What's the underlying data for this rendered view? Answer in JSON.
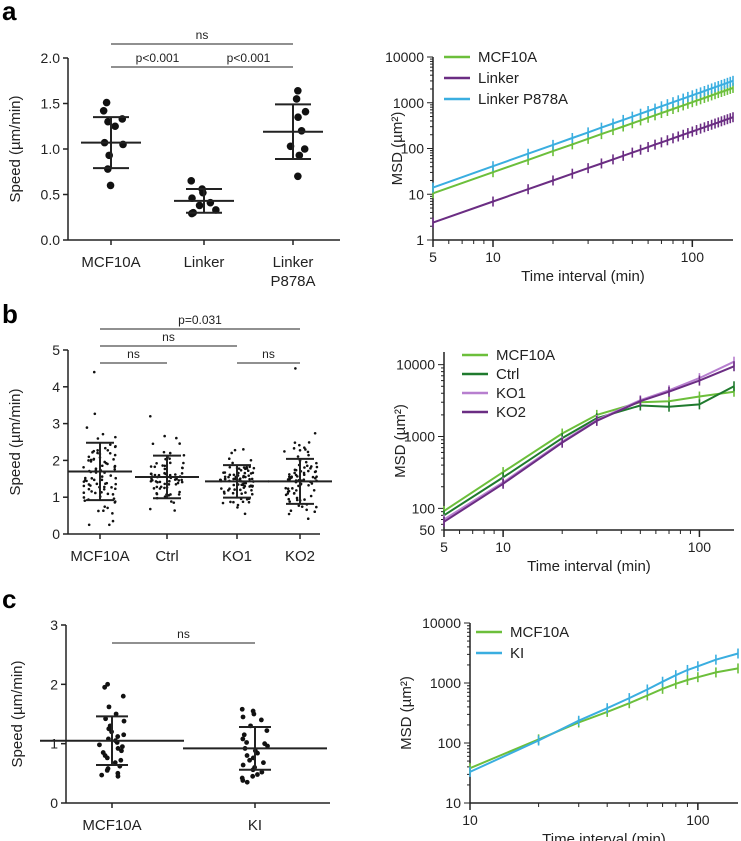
{
  "panels": [
    {
      "label": "a",
      "label_color": "#222222"
    },
    {
      "label": "b",
      "label_color": "#222222"
    },
    {
      "label": "c",
      "label_color": "#222222"
    }
  ],
  "colors": {
    "axis": "#222222",
    "dot": "#111111",
    "MCF10A_a": "#6cbf3b",
    "Linker": "#6b2d83",
    "LinkerP878A": "#3aaee0",
    "MCF10A_b": "#6cbf3b",
    "Ctrl": "#1f7a2e",
    "KO1": "#b77fcf",
    "KO2": "#6b2d83",
    "MCF10A_c": "#6cbf3b",
    "KI": "#3aaee0"
  },
  "chart_data": [
    {
      "id": "a-speed",
      "type": "scatter",
      "ylabel": "Speed (µm/min)",
      "ylim": [
        0,
        2.0
      ],
      "yticks": [
        "0.0",
        "0.5",
        "1.0",
        "1.5",
        "2.0"
      ],
      "categories": [
        "MCF10A",
        "Linker",
        "Linker\nP878A"
      ],
      "groups": [
        {
          "name": "MCF10A",
          "mean": 1.07,
          "sd": 0.28,
          "points": [
            1.51,
            1.42,
            1.33,
            1.3,
            1.25,
            1.07,
            1.05,
            0.93,
            0.78,
            0.6
          ]
        },
        {
          "name": "Linker",
          "mean": 0.43,
          "sd": 0.13,
          "points": [
            0.65,
            0.56,
            0.52,
            0.46,
            0.41,
            0.38,
            0.33,
            0.3,
            0.29
          ]
        },
        {
          "name": "Linker P878A",
          "mean": 1.19,
          "sd": 0.3,
          "points": [
            1.64,
            1.55,
            1.41,
            1.35,
            1.2,
            1.03,
            1.0,
            0.93,
            0.7
          ]
        }
      ],
      "significance": [
        {
          "from": 0,
          "to": 2,
          "text": "ns",
          "level": 2
        },
        {
          "from": 0,
          "to": 1,
          "text": "p<0.001",
          "level": 1
        },
        {
          "from": 1,
          "to": 2,
          "text": "p<0.001",
          "level": 1
        }
      ]
    },
    {
      "id": "a-msd",
      "type": "line",
      "scale": "log-log",
      "xlabel": "Time interval (min)",
      "ylabel": "MSD (µm²)",
      "xlim": [
        5,
        160
      ],
      "ylim": [
        1,
        10000
      ],
      "xticks": [
        "5",
        "10",
        "100"
      ],
      "yticks": [
        "1",
        "10",
        "100",
        "1000",
        "10000"
      ],
      "series": [
        {
          "name": "MCF10A",
          "color_key": "MCF10A_a",
          "y_at_5": 10.5,
          "slope": 1.53
        },
        {
          "name": "Linker",
          "color_key": "Linker",
          "y_at_5": 2.4,
          "slope": 1.53
        },
        {
          "name": "Linker P878A",
          "color_key": "LinkerP878A",
          "y_at_5": 14,
          "slope": 1.55
        }
      ],
      "legend": [
        "MCF10A",
        "Linker",
        "Linker P878A"
      ],
      "legend_position": "top-left"
    },
    {
      "id": "b-speed",
      "type": "scatter",
      "ylabel": "Speed (µm/min)",
      "ylim": [
        0,
        5
      ],
      "yticks": [
        "0",
        "1",
        "2",
        "3",
        "4",
        "5"
      ],
      "categories": [
        "MCF10A",
        "Ctrl",
        "KO1",
        "KO2"
      ],
      "groups": [
        {
          "name": "MCF10A",
          "mean": 1.7,
          "sd": 0.78,
          "n": 85,
          "max": 4.4
        },
        {
          "name": "Ctrl",
          "mean": 1.55,
          "sd": 0.58,
          "n": 70,
          "max": 3.2
        },
        {
          "name": "KO1",
          "mean": 1.43,
          "sd": 0.44,
          "n": 85,
          "max": 2.3
        },
        {
          "name": "KO2",
          "mean": 1.43,
          "sd": 0.61,
          "n": 85,
          "max": 4.5
        }
      ],
      "significance": [
        {
          "from": 0,
          "to": 3,
          "text": "p=0.031",
          "level": 3
        },
        {
          "from": 0,
          "to": 2,
          "text": "ns",
          "level": 2
        },
        {
          "from": 0,
          "to": 1,
          "text": "ns",
          "level": 1
        },
        {
          "from": 2,
          "to": 3,
          "text": "ns",
          "level": 1
        }
      ]
    },
    {
      "id": "b-msd",
      "type": "line",
      "scale": "log-log",
      "xlabel": "Time interval (min)",
      "ylabel": "MSD (µm²)",
      "xlim": [
        5,
        150
      ],
      "ylim": [
        50,
        15000
      ],
      "xticks": [
        "5",
        "10",
        "100"
      ],
      "yticks": [
        "50",
        "100",
        "1000",
        "10000"
      ],
      "series": [
        {
          "name": "MCF10A",
          "color_key": "MCF10A_b",
          "points": [
            [
              5,
              92
            ],
            [
              10,
              320
            ],
            [
              20,
              1100
            ],
            [
              30,
              2000
            ],
            [
              50,
              3000
            ],
            [
              70,
              3100
            ],
            [
              100,
              3600
            ],
            [
              150,
              4200
            ]
          ]
        },
        {
          "name": "Ctrl",
          "color_key": "Ctrl",
          "points": [
            [
              5,
              80
            ],
            [
              10,
              270
            ],
            [
              20,
              950
            ],
            [
              30,
              1800
            ],
            [
              50,
              2700
            ],
            [
              70,
              2600
            ],
            [
              100,
              2800
            ],
            [
              150,
              5000
            ]
          ]
        },
        {
          "name": "KO1",
          "color_key": "KO1",
          "points": [
            [
              5,
              70
            ],
            [
              10,
              230
            ],
            [
              20,
              850
            ],
            [
              30,
              1700
            ],
            [
              50,
              3200
            ],
            [
              70,
              4400
            ],
            [
              100,
              6500
            ],
            [
              150,
              11000
            ]
          ]
        },
        {
          "name": "KO2",
          "color_key": "KO2",
          "points": [
            [
              5,
              65
            ],
            [
              10,
              220
            ],
            [
              20,
              820
            ],
            [
              30,
              1650
            ],
            [
              50,
              3100
            ],
            [
              70,
              4200
            ],
            [
              100,
              6000
            ],
            [
              150,
              9500
            ]
          ]
        }
      ],
      "legend": [
        "MCF10A",
        "Ctrl",
        "KO1",
        "KO2"
      ],
      "legend_position": "top-left"
    },
    {
      "id": "c-speed",
      "type": "scatter",
      "ylabel": "Speed (µm/min)",
      "ylim": [
        0,
        3
      ],
      "yticks": [
        "0",
        "1",
        "2",
        "3"
      ],
      "categories": [
        "MCF10A",
        "KI"
      ],
      "groups": [
        {
          "name": "MCF10A",
          "mean": 1.05,
          "sd": 0.41,
          "points": [
            2.0,
            1.95,
            1.8,
            1.62,
            1.5,
            1.42,
            1.38,
            1.3,
            1.25,
            1.2,
            1.15,
            1.12,
            1.08,
            1.05,
            1.02,
            0.98,
            0.95,
            0.92,
            0.88,
            0.85,
            0.8,
            0.76,
            0.72,
            0.68,
            0.62,
            0.58,
            0.55,
            0.5,
            0.47,
            0.45
          ]
        },
        {
          "name": "KI",
          "mean": 0.92,
          "sd": 0.36,
          "points": [
            1.58,
            1.55,
            1.5,
            1.45,
            1.4,
            1.3,
            1.22,
            1.15,
            1.08,
            1.02,
            1.0,
            0.96,
            0.92,
            0.88,
            0.84,
            0.8,
            0.76,
            0.72,
            0.68,
            0.64,
            0.6,
            0.56,
            0.52,
            0.48,
            0.45,
            0.42,
            0.38,
            0.35
          ]
        }
      ],
      "significance": [
        {
          "from": 0,
          "to": 1,
          "text": "ns",
          "level": 1
        }
      ]
    },
    {
      "id": "c-msd",
      "type": "line",
      "scale": "log-log",
      "xlabel": "Time interval (min)",
      "ylabel": "MSD (µm²)",
      "xlim": [
        10,
        150
      ],
      "ylim": [
        10,
        10000
      ],
      "xticks": [
        "10",
        "100"
      ],
      "yticks": [
        "10",
        "100",
        "1000",
        "10000"
      ],
      "series": [
        {
          "name": "MCF10A",
          "color_key": "MCF10A_c",
          "points": [
            [
              10,
              38
            ],
            [
              20,
              115
            ],
            [
              30,
              220
            ],
            [
              40,
              330
            ],
            [
              50,
              460
            ],
            [
              60,
              620
            ],
            [
              70,
              800
            ],
            [
              80,
              970
            ],
            [
              90,
              1120
            ],
            [
              100,
              1250
            ],
            [
              120,
              1500
            ],
            [
              150,
              1750
            ]
          ]
        },
        {
          "name": "KI",
          "color_key": "KI",
          "points": [
            [
              10,
              33
            ],
            [
              20,
              110
            ],
            [
              30,
              235
            ],
            [
              40,
              380
            ],
            [
              50,
              560
            ],
            [
              60,
              780
            ],
            [
              70,
              1050
            ],
            [
              80,
              1350
            ],
            [
              90,
              1650
            ],
            [
              100,
              1900
            ],
            [
              120,
              2450
            ],
            [
              150,
              3100
            ]
          ]
        }
      ],
      "legend": [
        "MCF10A",
        "KI"
      ],
      "legend_position": "top-left"
    }
  ]
}
